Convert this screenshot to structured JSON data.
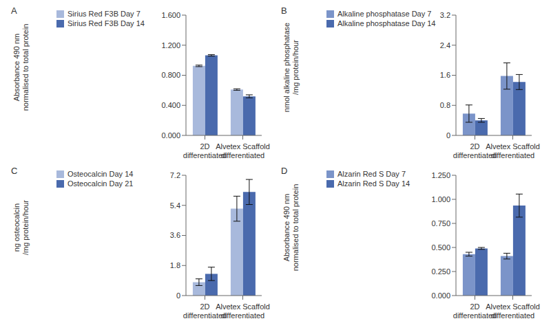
{
  "chart_data": [
    {
      "type": "bar",
      "title": "A",
      "ylabel": [
        "Absorbance 490 nm",
        "normalised to total protein"
      ],
      "categories": [
        "2D differentiated",
        "Alvetex Scaffold differentiated"
      ],
      "series": [
        {
          "name": "Sirius Red F3B Day 7",
          "color": "#a8b9dc",
          "values": [
            0.925,
            0.61
          ],
          "errors": [
            0.01,
            0.01
          ]
        },
        {
          "name": "Sirius Red F3B Day 14",
          "color": "#4a6aad",
          "values": [
            1.065,
            0.52
          ],
          "errors": [
            0.01,
            0.02
          ]
        }
      ],
      "ylim": [
        0,
        1.6
      ],
      "yticks": [
        {
          "value": 0,
          "label": "0.000"
        },
        {
          "value": 0.4,
          "label": "0.400"
        },
        {
          "value": 0.8,
          "label": "0.800"
        },
        {
          "value": 1.2,
          "label": "1.200"
        },
        {
          "value": 1.6,
          "label": "1.600"
        }
      ],
      "legend": "upper left",
      "grid": false
    },
    {
      "type": "bar",
      "title": "B",
      "ylabel": [
        "nmol alkaline phosphatase",
        "/mg protein/hour"
      ],
      "categories": [
        "2D differentiated",
        "Alvetex Scaffold differentiated"
      ],
      "series": [
        {
          "name": "Alkaline phosphatase Day 7",
          "color": "#7b94c9",
          "values": [
            0.58,
            1.58
          ],
          "errors": [
            0.23,
            0.35
          ]
        },
        {
          "name": "Alkaline phosphatase Day 14",
          "color": "#4a6aad",
          "values": [
            0.4,
            1.42
          ],
          "errors": [
            0.05,
            0.2
          ]
        }
      ],
      "ylim": [
        0,
        3.2
      ],
      "yticks": [
        0,
        0.8,
        1.6,
        2.4,
        3.2
      ],
      "legend": "upper left",
      "grid": false
    },
    {
      "type": "bar",
      "title": "C",
      "ylabel": [
        "ng osteocalcin",
        "/mg protein/hour"
      ],
      "categories": [
        "2D differentiated",
        "Alvetex Scaffold differentiated"
      ],
      "series": [
        {
          "name": "Osteocalcin Day 14",
          "color": "#a8b9dc",
          "values": [
            0.8,
            5.2
          ],
          "errors": [
            0.2,
            0.75
          ]
        },
        {
          "name": "Osteocalcin Day 21",
          "color": "#4a6aad",
          "values": [
            1.3,
            6.2
          ],
          "errors": [
            0.4,
            0.75
          ]
        }
      ],
      "ylim": [
        0,
        7.2
      ],
      "yticks": [
        0,
        1.8,
        3.6,
        5.4,
        7.2
      ],
      "legend": "upper left",
      "grid": false
    },
    {
      "type": "bar",
      "title": "D",
      "ylabel": [
        "Absorbance 490 nm",
        "normalised to total protein"
      ],
      "categories": [
        "2D differentiated",
        "Alvetex Scaffold differentiated"
      ],
      "series": [
        {
          "name": "Alzarin Red S Day 7",
          "color": "#7b94c9",
          "values": [
            0.43,
            0.41
          ],
          "errors": [
            0.02,
            0.03
          ]
        },
        {
          "name": "Alzarin Red S Day 14",
          "color": "#4a6aad",
          "values": [
            0.49,
            0.935
          ],
          "errors": [
            0.01,
            0.12
          ]
        }
      ],
      "ylim": [
        0,
        1.25
      ],
      "yticks": [
        {
          "value": 0,
          "label": "0.000"
        },
        {
          "value": 0.25,
          "label": "0.250"
        },
        {
          "value": 0.5,
          "label": "0.500"
        },
        {
          "value": 0.75,
          "label": "0.750"
        },
        {
          "value": 1,
          "label": "1.000"
        },
        {
          "value": 1.25,
          "label": "1.250"
        }
      ],
      "legend": "upper left",
      "grid": false
    }
  ]
}
